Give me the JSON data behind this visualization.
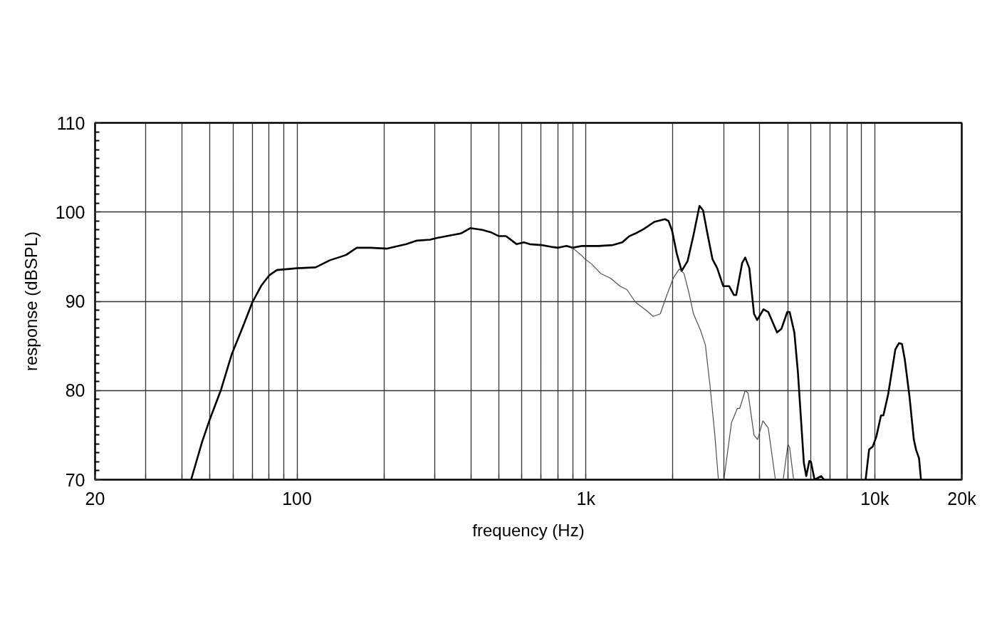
{
  "chart_data": {
    "type": "line",
    "xlabel": "frequency (Hz)",
    "ylabel": "response (dBSPL)",
    "log": "x",
    "grid": true,
    "xlim": [
      20,
      20000
    ],
    "ylim": [
      70,
      110
    ],
    "xticks": [
      20,
      {
        "value": 30,
        "label": null
      },
      {
        "value": 40,
        "label": null
      },
      {
        "value": 50,
        "label": null
      },
      {
        "value": 60,
        "label": null
      },
      {
        "value": 70,
        "label": null
      },
      {
        "value": 80,
        "label": null
      },
      {
        "value": 90,
        "label": null
      },
      100,
      {
        "value": 200,
        "label": null
      },
      {
        "value": 300,
        "label": null
      },
      {
        "value": 400,
        "label": null
      },
      {
        "value": 500,
        "label": null
      },
      {
        "value": 600,
        "label": null
      },
      {
        "value": 700,
        "label": null
      },
      {
        "value": 800,
        "label": null
      },
      {
        "value": 900,
        "label": null
      },
      {
        "value": 1000,
        "label": "1k"
      },
      {
        "value": 2000,
        "label": null
      },
      {
        "value": 3000,
        "label": null
      },
      {
        "value": 4000,
        "label": null
      },
      {
        "value": 5000,
        "label": null
      },
      {
        "value": 6000,
        "label": null
      },
      {
        "value": 7000,
        "label": null
      },
      {
        "value": 8000,
        "label": null
      },
      {
        "value": 9000,
        "label": null
      },
      {
        "value": 10000,
        "label": "10k"
      },
      {
        "value": 20000,
        "label": "20k"
      }
    ],
    "yticks": [
      70,
      80,
      90,
      100,
      110
    ],
    "series": [
      {
        "color": "#000000",
        "x": [
          43,
          46.9,
          49.7,
          54.6,
          59.5,
          64.7,
          70.1,
          75.4,
          80.1,
          85.2,
          100,
          116,
          130,
          142,
          148,
          161,
          180,
          205,
          239,
          260,
          289,
          306,
          330,
          369,
          398,
          438,
          472,
          500,
          529,
          576,
          610,
          639,
          703,
          758,
          802,
          857,
          898,
          969,
          1045,
          1106,
          1239,
          1336,
          1414,
          1484,
          1585,
          1725,
          1878,
          1932,
          1988,
          2065,
          2145,
          2249,
          2357,
          2473,
          2544,
          2641,
          2744,
          2849,
          2987,
          3131,
          3253,
          3314,
          3475,
          3561,
          3679,
          3819,
          3916,
          4121,
          4278,
          4589,
          4750,
          4979,
          5073,
          5268,
          5420,
          5681,
          5791,
          5936,
          6013,
          6187,
          6526,
          6676,
          8000,
          9295,
          9561,
          9836,
          10120,
          10510,
          10710,
          11130,
          11780,
          12120,
          12420,
          12700,
          13190,
          13650,
          13910,
          14230,
          14450
        ],
        "values": [
          70,
          74.2,
          76.6,
          80.1,
          84.1,
          87.0,
          89.9,
          91.8,
          92.9,
          93.5,
          93.7,
          93.8,
          94.6,
          95.0,
          95.2,
          96.0,
          96.0,
          95.9,
          96.4,
          96.8,
          96.9,
          97.1,
          97.3,
          97.6,
          98.2,
          98.0,
          97.7,
          97.3,
          97.3,
          96.4,
          96.6,
          96.4,
          96.3,
          96.1,
          96.0,
          96.2,
          96.0,
          96.2,
          96.2,
          96.2,
          96.3,
          96.6,
          97.3,
          97.6,
          98.1,
          98.9,
          99.2,
          99.0,
          97.9,
          95.3,
          93.4,
          94.5,
          97.4,
          100.7,
          100.2,
          97.4,
          94.7,
          93.7,
          91.7,
          91.7,
          90.7,
          90.7,
          94.3,
          94.9,
          93.7,
          88.6,
          87.9,
          89.1,
          88.8,
          86.5,
          86.9,
          88.8,
          88.8,
          86.5,
          82.0,
          71.9,
          70.4,
          72.1,
          72.0,
          70.0,
          70.4,
          70.0,
          null,
          70.0,
          73.4,
          73.7,
          74.8,
          77.2,
          77.2,
          79.6,
          84.6,
          85.3,
          85.2,
          83.5,
          79.3,
          74.5,
          73.3,
          72.4,
          70.0
        ]
      },
      {
        "color": "#4d4d4d",
        "x": [
          898,
          969,
          988,
          1045,
          1127,
          1216,
          1312,
          1388,
          1484,
          1555,
          1615,
          1710,
          1810,
          1897,
          2007,
          2104,
          2186,
          2271,
          2357,
          2496,
          2592,
          2692,
          2795,
          2875,
          2940,
          3004,
          3192,
          3346,
          3409,
          3561,
          3643,
          3819,
          3929,
          4098,
          4278,
          4529,
          4670,
          4819,
          5006,
          5073,
          5238
        ],
        "values": [
          96.0,
          95.1,
          94.8,
          94.2,
          93.1,
          92.6,
          91.7,
          91.3,
          89.9,
          89.4,
          89.0,
          88.3,
          88.6,
          90.5,
          92.6,
          93.6,
          93.1,
          91.0,
          88.6,
          86.7,
          85.1,
          80.4,
          75.0,
          70.0,
          null,
          70.0,
          76.4,
          78.0,
          78.0,
          80.0,
          79.7,
          75.0,
          74.5,
          76.6,
          75.8,
          70.0,
          null,
          70.0,
          74.0,
          73.6,
          70.0
        ]
      }
    ]
  }
}
